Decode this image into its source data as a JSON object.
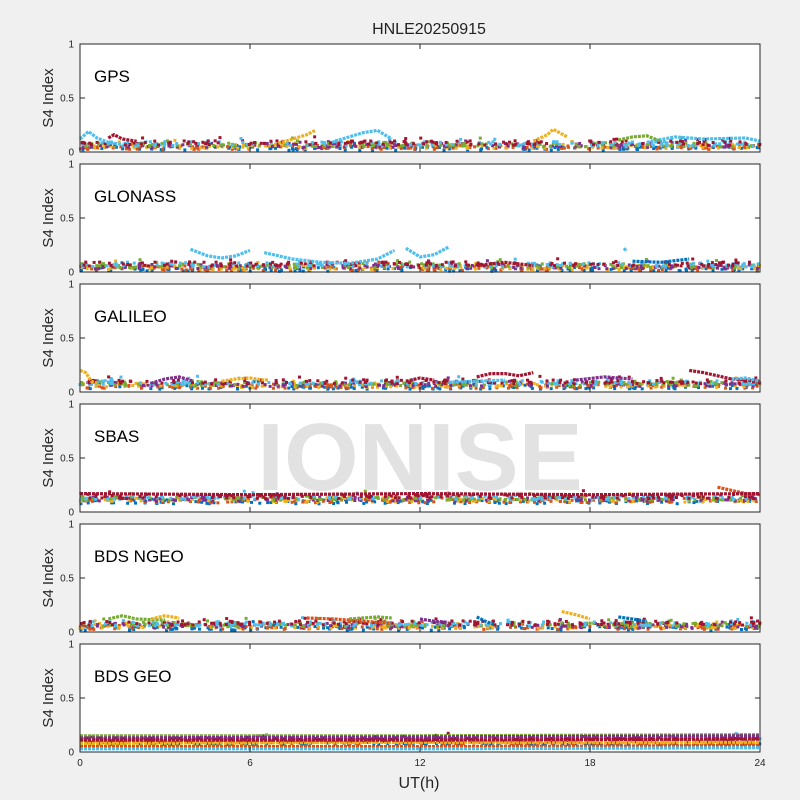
{
  "chart_data": {
    "type": "scatter",
    "title": "HNLE20250915",
    "xlabel": "UT(h)",
    "ylabel": "S4 Index",
    "xlim": [
      0,
      24
    ],
    "ylim": [
      0,
      1
    ],
    "xticks": [
      "0",
      "6",
      "12",
      "18",
      "24"
    ],
    "yticks": [
      "0",
      "0.5",
      "1"
    ],
    "grid": false,
    "watermark": "IONISE",
    "colors": [
      "#0072BD",
      "#D95319",
      "#EDB120",
      "#7E2F8E",
      "#77AC30",
      "#4DBEEE",
      "#A2142F"
    ],
    "panels": [
      {
        "name": "GPS",
        "baseline": 0.06,
        "tracks": [
          {
            "color": "#4DBEEE",
            "x": [
              0.0,
              0.3,
              0.6,
              1.0,
              1.5
            ],
            "y": [
              0.12,
              0.19,
              0.13,
              0.09,
              0.07
            ]
          },
          {
            "color": "#EDB120",
            "x": [
              7.0,
              7.5,
              8.0,
              8.3
            ],
            "y": [
              0.08,
              0.12,
              0.16,
              0.2
            ]
          },
          {
            "color": "#4DBEEE",
            "x": [
              9.0,
              9.5,
              10.0,
              10.5,
              11.0
            ],
            "y": [
              0.1,
              0.14,
              0.18,
              0.2,
              0.12
            ]
          },
          {
            "color": "#EDB120",
            "x": [
              16.0,
              16.5,
              16.7,
              17.2
            ],
            "y": [
              0.1,
              0.16,
              0.21,
              0.14
            ]
          },
          {
            "color": "#4DBEEE",
            "x": [
              20.0,
              21.0,
              22.0,
              23.5,
              24.0
            ],
            "y": [
              0.09,
              0.14,
              0.12,
              0.13,
              0.1
            ]
          },
          {
            "color": "#A2142F",
            "x": [
              1.0,
              1.2,
              1.5,
              2.0
            ],
            "y": [
              0.13,
              0.16,
              0.12,
              0.1
            ]
          },
          {
            "color": "#77AC30",
            "x": [
              19.0,
              19.5,
              20.0,
              20.5
            ],
            "y": [
              0.11,
              0.14,
              0.15,
              0.1
            ]
          }
        ]
      },
      {
        "name": "GLONASS",
        "baseline": 0.05,
        "tracks": [
          {
            "color": "#4DBEEE",
            "x": [
              3.9,
              4.5,
              5.0,
              5.5,
              6.0
            ],
            "y": [
              0.21,
              0.15,
              0.13,
              0.15,
              0.2
            ]
          },
          {
            "color": "#4DBEEE",
            "x": [
              6.5,
              7.5,
              8.5,
              9.5,
              10.5,
              11.1
            ],
            "y": [
              0.18,
              0.12,
              0.09,
              0.08,
              0.12,
              0.2
            ]
          },
          {
            "color": "#4DBEEE",
            "x": [
              11.5,
              12.0,
              12.5,
              13.0
            ],
            "y": [
              0.22,
              0.14,
              0.16,
              0.23
            ]
          },
          {
            "color": "#4DBEEE",
            "x": [
              19.2,
              19.3
            ],
            "y": [
              0.22,
              0.19
            ]
          },
          {
            "color": "#0072BD",
            "x": [
              19.5,
              20.5,
              21.5
            ],
            "y": [
              0.1,
              0.09,
              0.12
            ]
          },
          {
            "color": "#A2142F",
            "x": [
              14.0,
              15.0,
              16.0
            ],
            "y": [
              0.06,
              0.09,
              0.06
            ]
          }
        ]
      },
      {
        "name": "GALILEO",
        "baseline": 0.07,
        "tracks": [
          {
            "color": "#EDB120",
            "x": [
              0.0,
              0.2,
              0.4,
              0.6
            ],
            "y": [
              0.2,
              0.18,
              0.1,
              0.08
            ]
          },
          {
            "color": "#7E2F8E",
            "x": [
              2.5,
              3.0,
              3.5,
              4.0
            ],
            "y": [
              0.08,
              0.12,
              0.14,
              0.1
            ]
          },
          {
            "color": "#EDB120",
            "x": [
              5.0,
              5.5,
              6.0,
              6.5
            ],
            "y": [
              0.1,
              0.12,
              0.13,
              0.11
            ]
          },
          {
            "color": "#A2142F",
            "x": [
              11.5,
              12.0,
              12.5
            ],
            "y": [
              0.1,
              0.13,
              0.11
            ]
          },
          {
            "color": "#A2142F",
            "x": [
              14.0,
              14.5,
              15.0,
              15.5,
              16.0
            ],
            "y": [
              0.14,
              0.17,
              0.17,
              0.15,
              0.18
            ]
          },
          {
            "color": "#4DBEEE",
            "x": [
              13.0,
              14.0,
              15.0
            ],
            "y": [
              0.09,
              0.1,
              0.11
            ]
          },
          {
            "color": "#A2142F",
            "x": [
              21.5,
              22.0,
              22.5,
              23.0,
              24.0
            ],
            "y": [
              0.2,
              0.18,
              0.15,
              0.12,
              0.1
            ]
          },
          {
            "color": "#7E2F8E",
            "x": [
              17.5,
              18.5,
              19.5
            ],
            "y": [
              0.11,
              0.14,
              0.12
            ]
          },
          {
            "color": "#4DBEEE",
            "x": [
              23.0,
              23.5,
              24.0
            ],
            "y": [
              0.12,
              0.13,
              0.1
            ]
          }
        ]
      },
      {
        "name": "SBAS",
        "baseline": 0.12,
        "tracks": [
          {
            "color": "#D95319",
            "x": [
              22.5,
              23.0,
              23.5,
              24.0
            ],
            "y": [
              0.23,
              0.2,
              0.17,
              0.16
            ]
          },
          {
            "color": "#A2142F",
            "x": [
              0.0,
              6.0,
              12.0,
              18.0,
              24.0
            ],
            "y": [
              0.17,
              0.16,
              0.17,
              0.16,
              0.17
            ]
          }
        ]
      },
      {
        "name": "BDS NGEO",
        "baseline": 0.06,
        "tracks": [
          {
            "color": "#77AC30",
            "x": [
              1.0,
              1.5,
              2.0,
              3.0
            ],
            "y": [
              0.12,
              0.15,
              0.12,
              0.11
            ]
          },
          {
            "color": "#EDB120",
            "x": [
              2.5,
              3.0,
              3.5
            ],
            "y": [
              0.12,
              0.15,
              0.13
            ]
          },
          {
            "color": "#D95319",
            "x": [
              8.0,
              9.0,
              10.0,
              11.0
            ],
            "y": [
              0.13,
              0.12,
              0.1,
              0.08
            ]
          },
          {
            "color": "#77AC30",
            "x": [
              9.5,
              10.5,
              11.0
            ],
            "y": [
              0.12,
              0.14,
              0.13
            ]
          },
          {
            "color": "#EDB120",
            "x": [
              17.0,
              17.5,
              18.0
            ],
            "y": [
              0.19,
              0.16,
              0.12
            ]
          },
          {
            "color": "#0072BD",
            "x": [
              19.0,
              19.5,
              20.0
            ],
            "y": [
              0.14,
              0.12,
              0.1
            ]
          },
          {
            "color": "#0072BD",
            "x": [
              14.0,
              14.3,
              14.6
            ],
            "y": [
              0.14,
              0.1,
              0.07
            ]
          },
          {
            "color": "#7E2F8E",
            "x": [
              12.0,
              12.5,
              13.0
            ],
            "y": [
              0.12,
              0.1,
              0.09
            ]
          }
        ]
      },
      {
        "name": "BDS GEO",
        "baseline": 0.1,
        "tracks": [
          {
            "color": "#77AC30",
            "x": [
              0.0,
              12.0,
              24.0
            ],
            "y": [
              0.15,
              0.15,
              0.16
            ]
          },
          {
            "color": "#7E2F8E",
            "x": [
              0.0,
              12.0,
              24.0
            ],
            "y": [
              0.13,
              0.14,
              0.15
            ]
          },
          {
            "color": "#EDB120",
            "x": [
              0.0,
              12.0,
              24.0
            ],
            "y": [
              0.08,
              0.09,
              0.09
            ]
          },
          {
            "color": "#D95319",
            "x": [
              0.0,
              12.0,
              24.0
            ],
            "y": [
              0.05,
              0.05,
              0.06
            ]
          },
          {
            "color": "#A2142F",
            "x": [
              0.0,
              12.0,
              24.0
            ],
            "y": [
              0.11,
              0.11,
              0.12
            ]
          },
          {
            "color": "#4DBEEE",
            "x": [
              0.0,
              12.0,
              24.0
            ],
            "y": [
              0.03,
              0.03,
              0.04
            ]
          }
        ]
      }
    ]
  }
}
